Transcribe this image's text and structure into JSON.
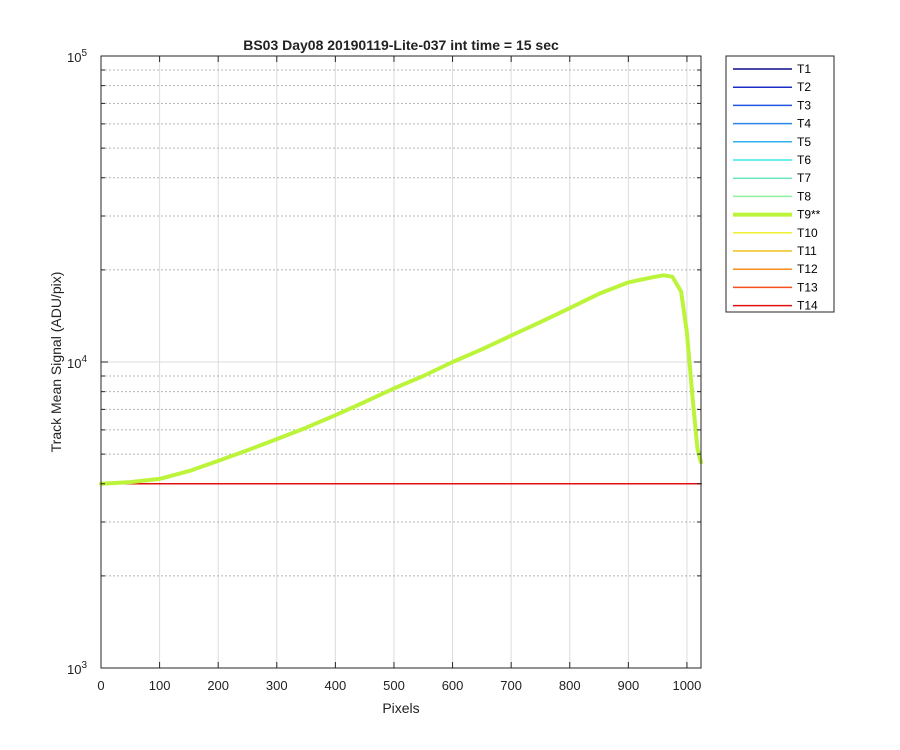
{
  "chart_data": {
    "type": "line",
    "title": "BS03 Day08 20190119-Lite-037 int time = 15 sec",
    "xlabel": "Pixels",
    "ylabel": "Track Mean Signal (ADU/pix)",
    "xlim": [
      0,
      1024
    ],
    "ylim": [
      1000,
      100000
    ],
    "y_scale": "log",
    "x_ticks": [
      0,
      100,
      200,
      300,
      400,
      500,
      600,
      700,
      800,
      900,
      1000
    ],
    "x_tick_labels": [
      "0",
      "100",
      "200",
      "300",
      "400",
      "500",
      "600",
      "700",
      "800",
      "900",
      "1000"
    ],
    "y_ticks": [
      1000,
      10000,
      100000
    ],
    "y_tick_labels": [
      {
        "base": "10",
        "exp": "3"
      },
      {
        "base": "10",
        "exp": "4"
      },
      {
        "base": "10",
        "exp": "5"
      }
    ],
    "grid": true,
    "legend_position": "outside-right",
    "series": [
      {
        "name": "T1",
        "color": "#0d0d8a",
        "width": 1.5,
        "x": [
          0,
          1024
        ],
        "y": [
          4000,
          4000
        ]
      },
      {
        "name": "T2",
        "color": "#1a2cc4",
        "width": 1.5,
        "x": [
          0,
          1024
        ],
        "y": [
          4000,
          4000
        ]
      },
      {
        "name": "T3",
        "color": "#1f55e0",
        "width": 1.5,
        "x": [
          0,
          1024
        ],
        "y": [
          4000,
          4000
        ]
      },
      {
        "name": "T4",
        "color": "#2c86e8",
        "width": 1.5,
        "x": [
          0,
          1024
        ],
        "y": [
          4000,
          4000
        ]
      },
      {
        "name": "T5",
        "color": "#2eb3ee",
        "width": 1.5,
        "x": [
          0,
          1024
        ],
        "y": [
          4000,
          4000
        ]
      },
      {
        "name": "T6",
        "color": "#3ae8e8",
        "width": 1.5,
        "x": [
          0,
          1024
        ],
        "y": [
          4000,
          4000
        ]
      },
      {
        "name": "T7",
        "color": "#6ee8c0",
        "width": 1.5,
        "x": [
          0,
          1024
        ],
        "y": [
          4000,
          4000
        ]
      },
      {
        "name": "T8",
        "color": "#8ef09a",
        "width": 1.5,
        "x": [
          0,
          1024
        ],
        "y": [
          4000,
          4000
        ]
      },
      {
        "name": "T9**",
        "color": "#bcf43c",
        "width": 4,
        "x": [
          0,
          50,
          100,
          150,
          200,
          250,
          300,
          350,
          400,
          450,
          500,
          550,
          600,
          650,
          700,
          750,
          800,
          850,
          900,
          940,
          960,
          975,
          990,
          1000,
          1010,
          1018,
          1024
        ],
        "y": [
          4000,
          4050,
          4150,
          4400,
          4750,
          5150,
          5600,
          6100,
          6700,
          7400,
          8200,
          9000,
          10000,
          11000,
          12200,
          13500,
          15000,
          16700,
          18200,
          18900,
          19200,
          19000,
          17000,
          12500,
          7500,
          5200,
          4700
        ]
      },
      {
        "name": "T10",
        "color": "#f0f032",
        "width": 1.5,
        "x": [
          0,
          1024
        ],
        "y": [
          4000,
          4000
        ]
      },
      {
        "name": "T11",
        "color": "#f0c01e",
        "width": 1.5,
        "x": [
          0,
          1024
        ],
        "y": [
          4000,
          4000
        ]
      },
      {
        "name": "T12",
        "color": "#f88c1c",
        "width": 1.5,
        "x": [
          0,
          1024
        ],
        "y": [
          4000,
          4000
        ]
      },
      {
        "name": "T13",
        "color": "#f4501c",
        "width": 1.5,
        "x": [
          0,
          1024
        ],
        "y": [
          4000,
          4000
        ]
      },
      {
        "name": "T14",
        "color": "#e01010",
        "width": 1.5,
        "x": [
          0,
          1024
        ],
        "y": [
          4000,
          4000
        ]
      }
    ]
  }
}
